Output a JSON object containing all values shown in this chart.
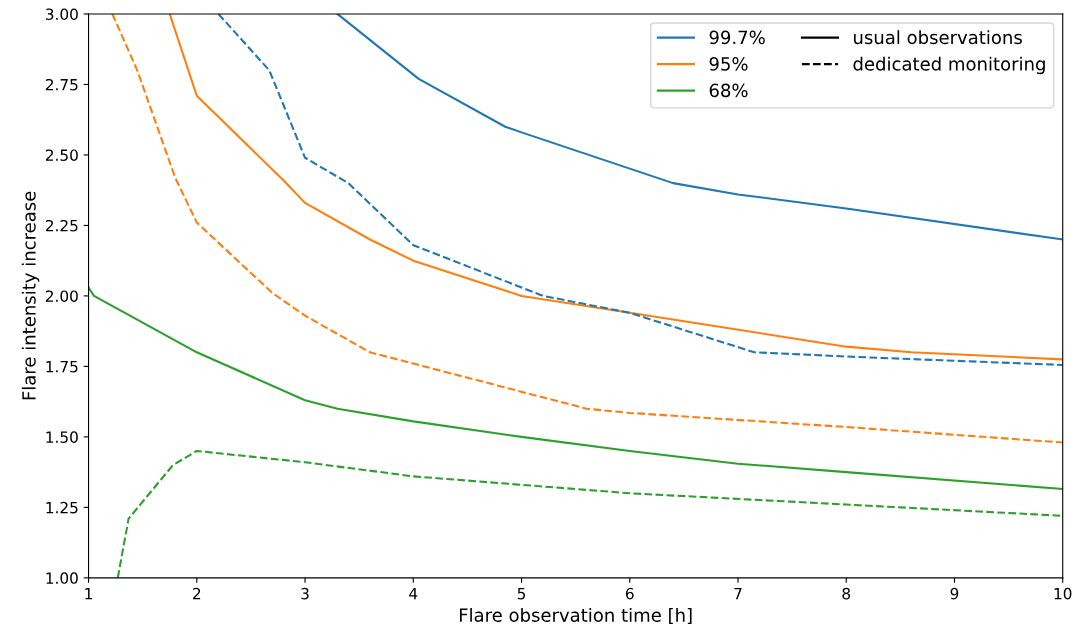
{
  "chart_data": {
    "type": "line",
    "xlabel": "Flare observation time [h]",
    "ylabel": "Flare intensity increase",
    "xlim": [
      1,
      10
    ],
    "xticks": [
      1,
      2,
      3,
      4,
      5,
      6,
      7,
      8,
      9,
      10
    ],
    "ylim": [
      1.0,
      3.0
    ],
    "yticks": [
      {
        "value": 1.0,
        "label": "1.00"
      },
      {
        "value": 1.25,
        "label": "1.25"
      },
      {
        "value": 1.5,
        "label": "1.50"
      },
      {
        "value": 1.75,
        "label": "1.75"
      },
      {
        "value": 2.0,
        "label": "2.00"
      },
      {
        "value": 2.25,
        "label": "2.25"
      },
      {
        "value": 2.5,
        "label": "2.50"
      },
      {
        "value": 2.75,
        "label": "2.75"
      },
      {
        "value": 3.0,
        "label": "3.00"
      }
    ],
    "grid": false,
    "legend": "top right",
    "marker": "none",
    "annotations": [
      "usual observations",
      "dedicated monitoring"
    ],
    "series": [
      {
        "name": "99.7%",
        "color": "#1f77b4",
        "line_style": "solid",
        "x": [
          3.3,
          4.05,
          4.85,
          5.0,
          6.4,
          7.0,
          8.0,
          10.0
        ],
        "values": [
          3.0,
          2.77,
          2.6,
          2.58,
          2.4,
          2.36,
          2.31,
          2.2
        ]
      },
      {
        "name": "95%",
        "color": "#ff7f0e",
        "line_style": "solid",
        "x": [
          1.75,
          2.0,
          2.8,
          3.0,
          3.6,
          4.0,
          5.0,
          6.0,
          8.0,
          8.6,
          10.0
        ],
        "values": [
          3.0,
          2.71,
          2.41,
          2.33,
          2.2,
          2.125,
          2.0,
          1.94,
          1.82,
          1.8,
          1.775
        ]
      },
      {
        "name": "68%",
        "color": "#2ca02c",
        "line_style": "solid",
        "x": [
          1.0,
          1.05,
          2.0,
          3.0,
          3.3,
          4.0,
          5.0,
          6.0,
          7.0,
          8.0,
          10.0
        ],
        "values": [
          2.03,
          2.0,
          1.8,
          1.63,
          1.6,
          1.555,
          1.5,
          1.45,
          1.405,
          1.375,
          1.315
        ]
      },
      {
        "color": "#1f77b4",
        "line_style": "dashed",
        "x": [
          2.2,
          2.67,
          3.0,
          3.4,
          4.0,
          5.2,
          6.0,
          7.15,
          8.0,
          10.0
        ],
        "values": [
          3.0,
          2.8,
          2.49,
          2.4,
          2.18,
          2.0,
          1.94,
          1.8,
          1.785,
          1.755
        ]
      },
      {
        "color": "#ff7f0e",
        "line_style": "dashed",
        "x": [
          1.22,
          1.45,
          1.8,
          2.0,
          2.7,
          3.0,
          3.6,
          4.0,
          5.6,
          6.0,
          8.0,
          10.0
        ],
        "values": [
          3.0,
          2.8,
          2.42,
          2.26,
          2.01,
          1.93,
          1.8,
          1.76,
          1.6,
          1.585,
          1.535,
          1.48
        ]
      },
      {
        "color": "#2ca02c",
        "line_style": "dashed",
        "x": [
          1.27,
          1.37,
          1.78,
          2.0,
          3.0,
          4.0,
          5.0,
          6.0,
          8.0,
          10.0
        ],
        "values": [
          1.0,
          1.21,
          1.4,
          1.45,
          1.41,
          1.36,
          1.33,
          1.3,
          1.26,
          1.22
        ]
      }
    ]
  }
}
